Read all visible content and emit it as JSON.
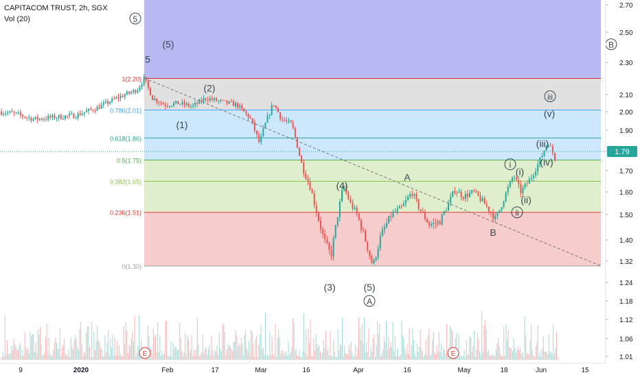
{
  "header": {
    "title": "CAPITACOM TRUST, 2h, SGX",
    "volume_label": "Vol (20)"
  },
  "price_badge": "1.79",
  "colors": {
    "fib_1": "#d32f2f",
    "fib_0786": "#42a5f5",
    "fib_0618": "#26a69a",
    "fib_05": "#4caf50",
    "fib_0382": "#8bc34a",
    "fib_0236": "#e53935",
    "fib_0": "#9e9e9e",
    "zone_top": "#7e7ee8",
    "zone_grey": "#bdbdbd",
    "zone_blue": "#90caf9",
    "zone_lime": "#c5e1a5",
    "zone_red": "#ef9a9a",
    "candle_up": "#26a69a",
    "candle_down": "#ef5350",
    "badge": "#26a69a"
  },
  "chart_data": {
    "type": "candlestick",
    "y_axis": {
      "ticks": [
        1.01,
        1.06,
        1.12,
        1.18,
        1.24,
        1.32,
        1.4,
        1.5,
        1.6,
        1.7,
        1.79,
        1.9,
        2.0,
        2.1,
        2.3,
        2.5,
        2.7
      ]
    },
    "x_axis": {
      "ticks": [
        "9",
        "2020",
        "Feb",
        "17",
        "Mar",
        "16",
        "Apr",
        "16",
        "May",
        "18",
        "Jun",
        "15"
      ]
    },
    "fib_levels": [
      {
        "label": "1(2.20)",
        "value": 2.2
      },
      {
        "label": "0.786(2.01)",
        "value": 2.01
      },
      {
        "label": "0.618(1.86)",
        "value": 1.86
      },
      {
        "label": "0.5(1.75)",
        "value": 1.75
      },
      {
        "label": "0.382(1.65)",
        "value": 1.65
      },
      {
        "label": "0.236(1.51)",
        "value": 1.51
      },
      {
        "label": "0(1.30)",
        "value": 1.3
      }
    ],
    "price_path": [
      {
        "x": 0,
        "y": 2.0
      },
      {
        "x": 20,
        "y": 1.99
      },
      {
        "x": 50,
        "y": 1.96
      },
      {
        "x": 80,
        "y": 1.97
      },
      {
        "x": 110,
        "y": 1.98
      },
      {
        "x": 140,
        "y": 2.02
      },
      {
        "x": 170,
        "y": 2.08
      },
      {
        "x": 200,
        "y": 2.13
      },
      {
        "x": 210,
        "y": 2.2
      },
      {
        "x": 222,
        "y": 2.08
      },
      {
        "x": 240,
        "y": 2.04
      },
      {
        "x": 260,
        "y": 2.05
      },
      {
        "x": 280,
        "y": 2.03
      },
      {
        "x": 300,
        "y": 2.08
      },
      {
        "x": 320,
        "y": 2.06
      },
      {
        "x": 345,
        "y": 2.04
      },
      {
        "x": 365,
        "y": 1.96
      },
      {
        "x": 378,
        "y": 1.83
      },
      {
        "x": 385,
        "y": 1.92
      },
      {
        "x": 398,
        "y": 2.05
      },
      {
        "x": 410,
        "y": 1.96
      },
      {
        "x": 425,
        "y": 1.93
      },
      {
        "x": 440,
        "y": 1.72
      },
      {
        "x": 452,
        "y": 1.62
      },
      {
        "x": 462,
        "y": 1.5
      },
      {
        "x": 472,
        "y": 1.4
      },
      {
        "x": 482,
        "y": 1.34
      },
      {
        "x": 490,
        "y": 1.47
      },
      {
        "x": 500,
        "y": 1.63
      },
      {
        "x": 510,
        "y": 1.55
      },
      {
        "x": 520,
        "y": 1.5
      },
      {
        "x": 532,
        "y": 1.4
      },
      {
        "x": 543,
        "y": 1.3
      },
      {
        "x": 555,
        "y": 1.42
      },
      {
        "x": 570,
        "y": 1.5
      },
      {
        "x": 585,
        "y": 1.53
      },
      {
        "x": 600,
        "y": 1.6
      },
      {
        "x": 610,
        "y": 1.53
      },
      {
        "x": 625,
        "y": 1.46
      },
      {
        "x": 640,
        "y": 1.47
      },
      {
        "x": 652,
        "y": 1.54
      },
      {
        "x": 662,
        "y": 1.61
      },
      {
        "x": 675,
        "y": 1.58
      },
      {
        "x": 690,
        "y": 1.6
      },
      {
        "x": 705,
        "y": 1.55
      },
      {
        "x": 722,
        "y": 1.48
      },
      {
        "x": 735,
        "y": 1.58
      },
      {
        "x": 748,
        "y": 1.68
      },
      {
        "x": 758,
        "y": 1.6
      },
      {
        "x": 770,
        "y": 1.65
      },
      {
        "x": 785,
        "y": 1.74
      },
      {
        "x": 798,
        "y": 1.84
      },
      {
        "x": 808,
        "y": 1.76
      }
    ],
    "annotations": [
      {
        "text": "5",
        "circled": true,
        "x": 197,
        "y": 2.6
      },
      {
        "text": "(5)",
        "x": 245,
        "y": 2.42
      },
      {
        "text": "5",
        "x": 215,
        "y": 2.32
      },
      {
        "text": "(2)",
        "x": 305,
        "y": 2.14
      },
      {
        "text": "(1)",
        "x": 265,
        "y": 1.93
      },
      {
        "text": "(4)",
        "x": 498,
        "y": 1.63
      },
      {
        "text": "A",
        "x": 593,
        "y": 1.67
      },
      {
        "text": "(3)",
        "x": 480,
        "y": 1.225
      },
      {
        "text": "(5)",
        "x": 538,
        "y": 1.225
      },
      {
        "text": "A",
        "circled": true,
        "x": 538,
        "y": 1.18
      },
      {
        "text": "B",
        "x": 718,
        "y": 1.43
      },
      {
        "text": "i",
        "circled": true,
        "x": 743,
        "y": 1.73
      },
      {
        "text": "(i)",
        "x": 757,
        "y": 1.695
      },
      {
        "text": "(ii)",
        "x": 766,
        "y": 1.565
      },
      {
        "text": "ii",
        "circled": true,
        "x": 753,
        "y": 1.51
      },
      {
        "text": "iii",
        "circled": true,
        "x": 801,
        "y": 2.09
      },
      {
        "text": "(v)",
        "x": 800,
        "y": 1.99
      },
      {
        "text": "(iii)",
        "x": 790,
        "y": 1.83
      },
      {
        "text": "(iv)",
        "x": 796,
        "y": 1.74
      },
      {
        "text": "B",
        "circled": true,
        "x": 890,
        "y": 2.42
      }
    ],
    "earnings_markers": [
      "E",
      "E"
    ]
  }
}
